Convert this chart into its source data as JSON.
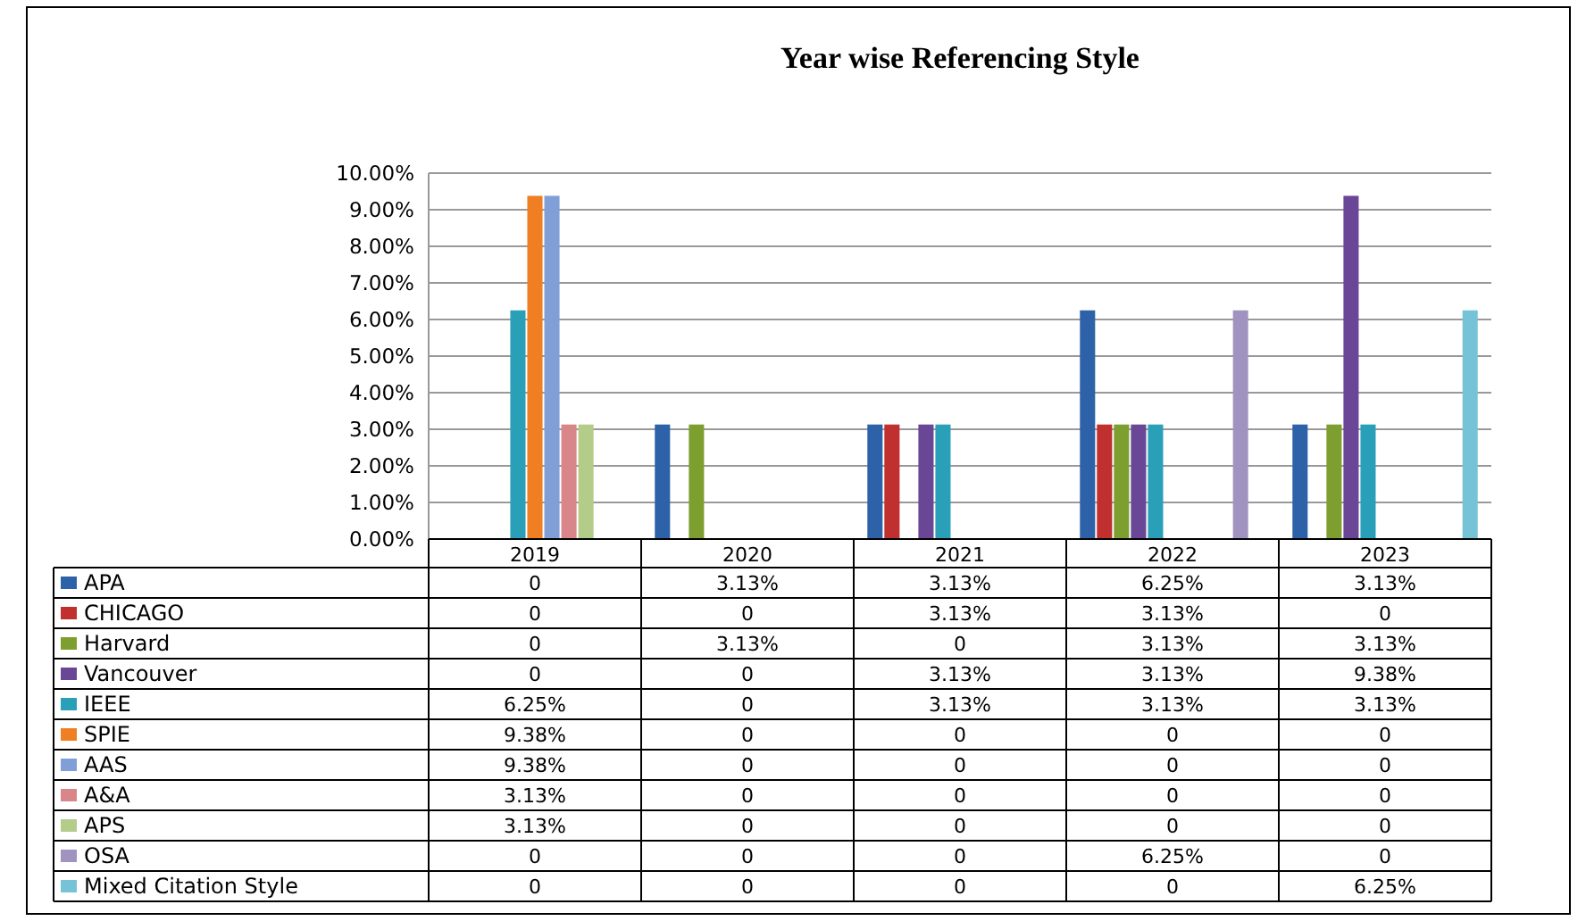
{
  "chart_data": {
    "type": "bar",
    "title": "Year wise Referencing Style",
    "categories": [
      "2019",
      "2020",
      "2021",
      "2022",
      "2023"
    ],
    "ylim": [
      0,
      10
    ],
    "yticks": [
      {
        "value": 0,
        "label": "0.00%"
      },
      {
        "value": 1,
        "label": "1.00%"
      },
      {
        "value": 2,
        "label": "2.00%"
      },
      {
        "value": 3,
        "label": "3.00%"
      },
      {
        "value": 4,
        "label": "4.00%"
      },
      {
        "value": 5,
        "label": "5.00%"
      },
      {
        "value": 6,
        "label": "6.00%"
      },
      {
        "value": 7,
        "label": "7.00%"
      },
      {
        "value": 8,
        "label": "8.00%"
      },
      {
        "value": 9,
        "label": "9.00%"
      },
      {
        "value": 10,
        "label": "10.00%"
      }
    ],
    "grid": "y",
    "legend": "bottom",
    "series": [
      {
        "name": "APA",
        "color": "#2e62a8",
        "values": [
          0,
          3.13,
          3.13,
          6.25,
          3.13
        ],
        "value_labels": [
          "0",
          "3.13%",
          "3.13%",
          "6.25%",
          "3.13%"
        ]
      },
      {
        "name": "CHICAGO",
        "color": "#c0302f",
        "values": [
          0,
          0,
          3.13,
          3.13,
          0
        ],
        "value_labels": [
          "0",
          "0",
          "3.13%",
          "3.13%",
          "0"
        ]
      },
      {
        "name": "Harvard",
        "color": "#7d9f2f",
        "values": [
          0,
          3.13,
          0,
          3.13,
          3.13
        ],
        "value_labels": [
          "0",
          "3.13%",
          "0",
          "3.13%",
          "3.13%"
        ]
      },
      {
        "name": "Vancouver",
        "color": "#6a4796",
        "values": [
          0,
          0,
          3.13,
          3.13,
          9.38
        ],
        "value_labels": [
          "0",
          "0",
          "3.13%",
          "3.13%",
          "9.38%"
        ]
      },
      {
        "name": "IEEE",
        "color": "#2aa0b8",
        "values": [
          6.25,
          0,
          3.13,
          3.13,
          3.13
        ],
        "value_labels": [
          "6.25%",
          "0",
          "3.13%",
          "3.13%",
          "3.13%"
        ]
      },
      {
        "name": "SPIE",
        "color": "#ef7f22",
        "values": [
          9.38,
          0,
          0,
          0,
          0
        ],
        "value_labels": [
          "9.38%",
          "0",
          "0",
          "0",
          "0"
        ]
      },
      {
        "name": "AAS",
        "color": "#7f9fd6",
        "values": [
          9.38,
          0,
          0,
          0,
          0
        ],
        "value_labels": [
          "9.38%",
          "0",
          "0",
          "0",
          "0"
        ]
      },
      {
        "name": "A&A",
        "color": "#d9868a",
        "values": [
          3.13,
          0,
          0,
          0,
          0
        ],
        "value_labels": [
          "3.13%",
          "0",
          "0",
          "0",
          "0"
        ]
      },
      {
        "name": "APS",
        "color": "#b3cc8a",
        "values": [
          3.13,
          0,
          0,
          0,
          0
        ],
        "value_labels": [
          "3.13%",
          "0",
          "0",
          "0",
          "0"
        ]
      },
      {
        "name": "OSA",
        "color": "#a093c0",
        "values": [
          0,
          0,
          0,
          6.25,
          0
        ],
        "value_labels": [
          "0",
          "0",
          "0",
          "6.25%",
          "0"
        ]
      },
      {
        "name": "Mixed Citation Style",
        "color": "#76c3d7",
        "values": [
          0,
          0,
          0,
          0,
          6.25
        ],
        "value_labels": [
          "0",
          "0",
          "0",
          "0",
          "6.25%"
        ]
      }
    ]
  }
}
